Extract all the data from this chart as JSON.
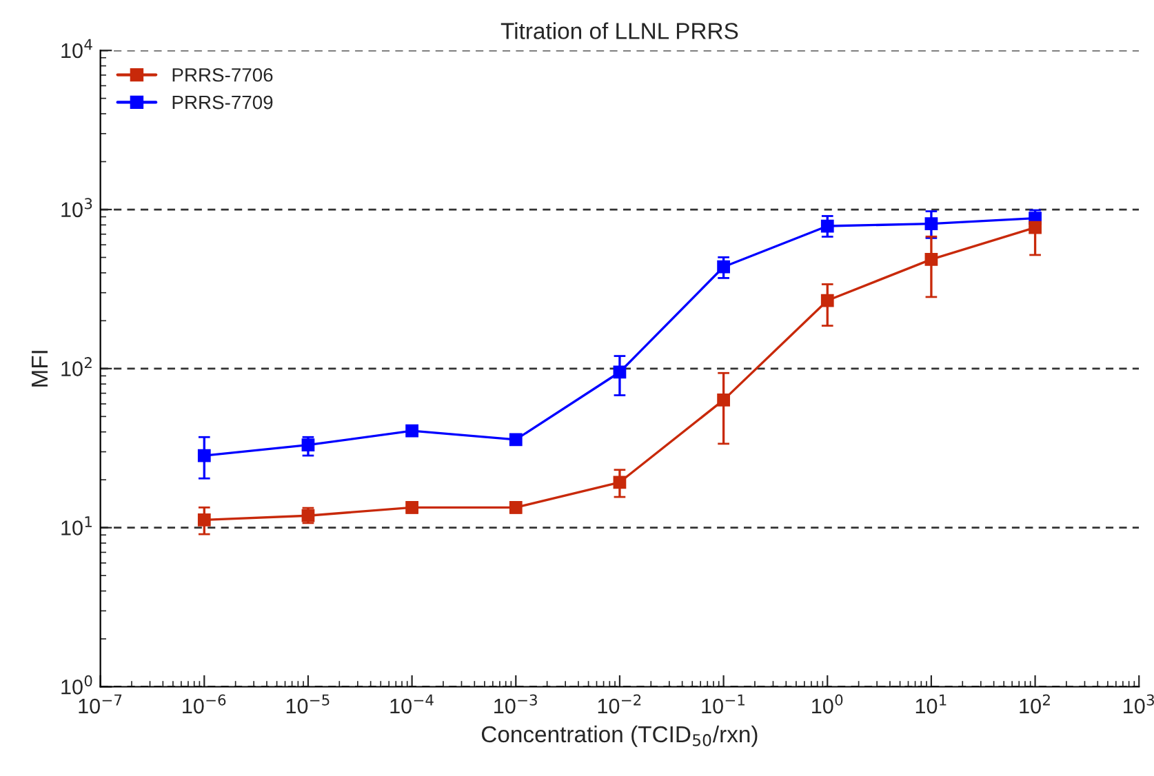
{
  "chart_data": {
    "type": "line",
    "title": "Titration of LLNL PRRS",
    "xlabel": "Concentration (TCID$_{50}$/rxn)",
    "ylabel": "MFI",
    "x": [
      1e-06,
      1e-05,
      0.0001,
      0.001,
      0.01,
      0.1,
      1,
      10,
      100
    ],
    "series": [
      {
        "name": "PRRS-7706",
        "color": "#c8290a",
        "values": [
          11.2,
          11.9,
          13.4,
          13.4,
          19.3,
          63.5,
          268,
          486,
          771
        ],
        "errors": [
          [
            9.1,
            13.4
          ],
          [
            10.7,
            13.3
          ],
          [
            12.4,
            14.4
          ],
          [
            12.4,
            14.4
          ],
          [
            15.6,
            23.1
          ],
          [
            33.7,
            93.8
          ],
          [
            186,
            339
          ],
          [
            282,
            676
          ],
          [
            518,
            771
          ]
        ]
      },
      {
        "name": "PRRS-7709",
        "color": "#0000ff",
        "values": [
          28.4,
          33.1,
          40.6,
          35.8,
          95,
          436,
          787,
          814,
          882
        ],
        "errors": [
          [
            20.4,
            37.1
          ],
          [
            28.4,
            37.1
          ],
          [
            38,
            43.5
          ],
          [
            33.5,
            38.2
          ],
          [
            68,
            120
          ],
          [
            371,
            501
          ],
          [
            675,
            910
          ],
          [
            662,
            975
          ],
          [
            807,
            990
          ]
        ]
      }
    ],
    "log": "xy",
    "xlim": [
      1e-07,
      1000.0
    ],
    "ylim": [
      1,
      10000.0
    ],
    "xticks": [
      {
        "value": 1e-07,
        "label": "10$^{−7}$"
      },
      {
        "value": 1e-06,
        "label": "10$^{−6}$"
      },
      {
        "value": 1e-05,
        "label": "10$^{−5}$"
      },
      {
        "value": 0.0001,
        "label": "10$^{−4}$"
      },
      {
        "value": 0.001,
        "label": "10$^{−3}$"
      },
      {
        "value": 0.01,
        "label": "10$^{−2}$"
      },
      {
        "value": 0.1,
        "label": "10$^{−1}$"
      },
      {
        "value": 1,
        "label": "10$^{0}$"
      },
      {
        "value": 10,
        "label": "10$^{1}$"
      },
      {
        "value": 100,
        "label": "10$^{2}$"
      },
      {
        "value": 1000,
        "label": "10$^{3}$"
      }
    ],
    "yticks": [
      {
        "value": 1,
        "label": "10$^{0}$"
      },
      {
        "value": 10,
        "label": "10$^{1}$"
      },
      {
        "value": 100,
        "label": "10$^{2}$"
      },
      {
        "value": 1000,
        "label": "10$^{3}$"
      },
      {
        "value": 10000,
        "label": "10$^{4}$"
      }
    ],
    "grid": "y",
    "legend": "top left",
    "marker": "square",
    "line_style": "solid"
  }
}
